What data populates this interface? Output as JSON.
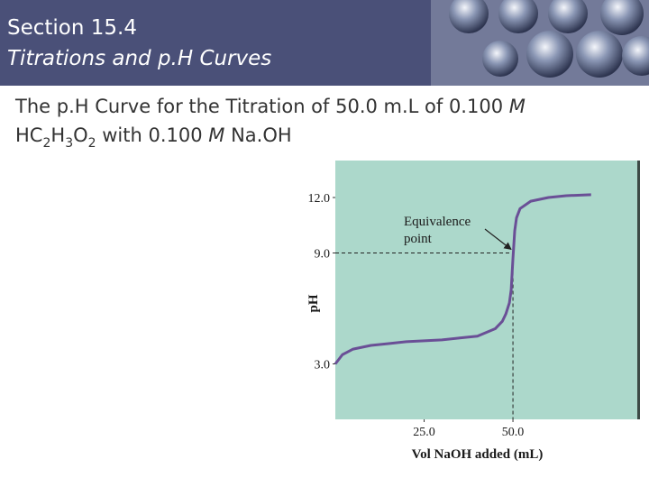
{
  "header": {
    "section": "Section 15.4",
    "title": "Titrations and p.H Curves"
  },
  "body": {
    "line1": [
      {
        "text": "The p.H Curve for the Titration of 50.0 m.L of 0.100 "
      },
      {
        "text": "M",
        "italic": true
      }
    ],
    "line2": [
      {
        "text": "HC"
      },
      {
        "text": "2",
        "sub": true
      },
      {
        "text": "H"
      },
      {
        "text": "3",
        "sub": true
      },
      {
        "text": "O"
      },
      {
        "text": "2",
        "sub": true
      },
      {
        "text": " with 0.100 "
      },
      {
        "text": "M",
        "italic": true
      },
      {
        "text": " Na.OH"
      }
    ]
  },
  "chart_data": {
    "type": "line",
    "x_label": "Vol NaOH added (mL)",
    "y_label": "pH",
    "annotation": [
      "Equivalence",
      "point"
    ],
    "xlim": [
      0,
      85
    ],
    "ylim": [
      0,
      14
    ],
    "xticks": [
      {
        "value": 25,
        "label": "25.0"
      },
      {
        "value": 50,
        "label": "50.0"
      }
    ],
    "yticks": [
      {
        "value": 3,
        "label": "3.0"
      },
      {
        "value": 9,
        "label": "9.0"
      },
      {
        "value": 12,
        "label": "12.0"
      }
    ],
    "background": "#acd8cb",
    "series": [
      {
        "color": "#6a4f96",
        "x": [
          0,
          2,
          5,
          10,
          15,
          20,
          25,
          30,
          35,
          40,
          45,
          47,
          48,
          49,
          49.5,
          50,
          50.5,
          51,
          52,
          55,
          60,
          65,
          72
        ],
        "values": [
          3.0,
          3.5,
          3.8,
          4.0,
          4.1,
          4.2,
          4.25,
          4.3,
          4.4,
          4.5,
          4.9,
          5.3,
          5.7,
          6.3,
          7.0,
          8.7,
          10.2,
          10.9,
          11.4,
          11.8,
          12.0,
          12.1,
          12.15
        ]
      }
    ]
  }
}
